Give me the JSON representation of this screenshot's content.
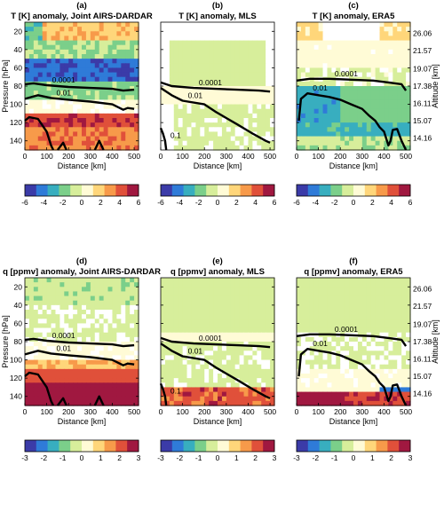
{
  "chart_data": {
    "type": "heatmap",
    "panels": [
      {
        "id": "a",
        "sub": "(a)",
        "title": "T [K] anomaly, Joint AIRS-DARDAR",
        "var": "T",
        "src": "airs",
        "ylabel_left": "Pressure [hPa]",
        "ylabel_right": "",
        "contours": [
          {
            "label": "0.0001",
            "pts": [
              [
                0,
                78
              ],
              [
                40,
                77
              ],
              [
                100,
                79
              ],
              [
                200,
                81
              ],
              [
                300,
                82
              ],
              [
                400,
                83
              ],
              [
                450,
                85
              ],
              [
                500,
                84
              ]
            ]
          },
          {
            "label": "0.01",
            "pts": [
              [
                0,
                94
              ],
              [
                60,
                90
              ],
              [
                120,
                93
              ],
              [
                200,
                95
              ],
              [
                300,
                97
              ],
              [
                400,
                100
              ],
              [
                450,
                106
              ],
              [
                470,
                104
              ],
              [
                500,
                105
              ]
            ]
          },
          {
            "label": "",
            "pts": [
              [
                0,
                118
              ],
              [
                20,
                114
              ],
              [
                60,
                116
              ],
              [
                100,
                130
              ],
              [
                120,
                145
              ],
              [
                130,
                150
              ]
            ]
          },
          {
            "label": "",
            "pts": [
              [
                150,
                150
              ],
              [
                175,
                142
              ],
              [
                190,
                150
              ]
            ]
          },
          {
            "label": "",
            "pts": [
              [
                320,
                150
              ],
              [
                340,
                140
              ],
              [
                360,
                150
              ]
            ]
          }
        ]
      },
      {
        "id": "b",
        "sub": "(b)",
        "title": "T [K] anomaly, MLS",
        "var": "T",
        "src": "mls",
        "ylabel_left": "",
        "ylabel_right": "",
        "contours": [
          {
            "label": "0.0001",
            "pts": [
              [
                0,
                76
              ],
              [
                50,
                80
              ],
              [
                150,
                82
              ],
              [
                250,
                83
              ],
              [
                350,
                84
              ],
              [
                450,
                85
              ],
              [
                500,
                86
              ]
            ]
          },
          {
            "label": "0.01",
            "pts": [
              [
                0,
                82
              ],
              [
                50,
                90
              ],
              [
                100,
                96
              ],
              [
                200,
                100
              ],
              [
                250,
                108
              ],
              [
                300,
                115
              ],
              [
                350,
                122
              ],
              [
                420,
                132
              ],
              [
                450,
                136
              ],
              [
                480,
                140
              ],
              [
                500,
                142
              ]
            ]
          },
          {
            "label": "0.1",
            "pts": [
              [
                0,
                126
              ],
              [
                10,
                132
              ],
              [
                20,
                140
              ],
              [
                25,
                150
              ]
            ]
          }
        ]
      },
      {
        "id": "c",
        "sub": "(c)",
        "title": "T [K] anomaly, ERA5",
        "var": "T",
        "src": "era",
        "ylabel_left": "",
        "ylabel_right": "Altitude [km]",
        "contours": [
          {
            "label": "0.0001",
            "pts": [
              [
                0,
                74
              ],
              [
                60,
                72
              ],
              [
                150,
                72
              ],
              [
                250,
                73
              ],
              [
                350,
                74
              ],
              [
                420,
                76
              ],
              [
                480,
                78
              ],
              [
                500,
                85
              ]
            ]
          },
          {
            "label": "0.01",
            "pts": [
              [
                10,
                118
              ],
              [
                20,
                94
              ],
              [
                50,
                88
              ],
              [
                100,
                90
              ],
              [
                150,
                92
              ],
              [
                200,
                95
              ],
              [
                250,
                100
              ],
              [
                300,
                105
              ],
              [
                330,
                112
              ],
              [
                360,
                118
              ],
              [
                380,
                125
              ],
              [
                400,
                130
              ],
              [
                420,
                145
              ],
              [
                430,
                140
              ],
              [
                440,
                128
              ],
              [
                460,
                127
              ],
              [
                480,
                140
              ],
              [
                500,
                150
              ]
            ]
          }
        ]
      },
      {
        "id": "d",
        "sub": "(d)",
        "title": "q [ppmv] anomaly, Joint AIRS-DARDAR",
        "var": "q",
        "src": "airs",
        "ylabel_left": "Pressure [hPa]",
        "ylabel_right": "",
        "contours": [
          {
            "label": "0.0001",
            "pts": [
              [
                0,
                78
              ],
              [
                40,
                77
              ],
              [
                100,
                79
              ],
              [
                200,
                81
              ],
              [
                300,
                82
              ],
              [
                400,
                83
              ],
              [
                450,
                85
              ],
              [
                500,
                84
              ]
            ]
          },
          {
            "label": "0.01",
            "pts": [
              [
                0,
                94
              ],
              [
                60,
                90
              ],
              [
                120,
                93
              ],
              [
                200,
                95
              ],
              [
                300,
                97
              ],
              [
                400,
                100
              ],
              [
                450,
                106
              ],
              [
                470,
                104
              ],
              [
                500,
                105
              ]
            ]
          },
          {
            "label": "",
            "pts": [
              [
                0,
                118
              ],
              [
                20,
                114
              ],
              [
                60,
                116
              ],
              [
                100,
                130
              ],
              [
                120,
                145
              ],
              [
                130,
                150
              ]
            ]
          },
          {
            "label": "",
            "pts": [
              [
                150,
                150
              ],
              [
                175,
                142
              ],
              [
                190,
                150
              ]
            ]
          },
          {
            "label": "",
            "pts": [
              [
                320,
                150
              ],
              [
                340,
                140
              ],
              [
                360,
                150
              ]
            ]
          }
        ]
      },
      {
        "id": "e",
        "sub": "(e)",
        "title": "q [ppmv] anomaly, MLS",
        "var": "q",
        "src": "mls",
        "ylabel_left": "",
        "ylabel_right": "",
        "contours": [
          {
            "label": "0.0001",
            "pts": [
              [
                0,
                76
              ],
              [
                50,
                80
              ],
              [
                150,
                82
              ],
              [
                250,
                83
              ],
              [
                350,
                84
              ],
              [
                450,
                85
              ],
              [
                500,
                86
              ]
            ]
          },
          {
            "label": "0.01",
            "pts": [
              [
                0,
                82
              ],
              [
                50,
                90
              ],
              [
                100,
                96
              ],
              [
                200,
                100
              ],
              [
                250,
                108
              ],
              [
                300,
                115
              ],
              [
                350,
                122
              ],
              [
                420,
                132
              ],
              [
                450,
                136
              ],
              [
                480,
                140
              ],
              [
                500,
                142
              ]
            ]
          },
          {
            "label": "0.1",
            "pts": [
              [
                0,
                126
              ],
              [
                10,
                132
              ],
              [
                20,
                140
              ],
              [
                25,
                150
              ]
            ]
          }
        ]
      },
      {
        "id": "f",
        "sub": "(f)",
        "title": "q [ppmv] anomaly, ERA5",
        "var": "q",
        "src": "era",
        "ylabel_left": "",
        "ylabel_right": "Altitude [km]",
        "contours": [
          {
            "label": "0.0001",
            "pts": [
              [
                0,
                74
              ],
              [
                60,
                72
              ],
              [
                150,
                72
              ],
              [
                250,
                73
              ],
              [
                350,
                74
              ],
              [
                420,
                76
              ],
              [
                480,
                78
              ],
              [
                500,
                85
              ]
            ]
          },
          {
            "label": "0.01",
            "pts": [
              [
                10,
                118
              ],
              [
                20,
                94
              ],
              [
                50,
                88
              ],
              [
                100,
                90
              ],
              [
                150,
                92
              ],
              [
                200,
                95
              ],
              [
                250,
                100
              ],
              [
                300,
                105
              ],
              [
                330,
                112
              ],
              [
                360,
                118
              ],
              [
                380,
                125
              ],
              [
                400,
                130
              ],
              [
                420,
                145
              ],
              [
                430,
                140
              ],
              [
                440,
                128
              ],
              [
                460,
                127
              ],
              [
                480,
                140
              ],
              [
                500,
                150
              ]
            ]
          }
        ]
      }
    ],
    "x_ticks": [
      0,
      100,
      200,
      300,
      400,
      500
    ],
    "x_label": "Distance [km]",
    "xlim": [
      0,
      520
    ],
    "y_ticks": [
      20,
      40,
      60,
      80,
      100,
      120,
      140
    ],
    "ylim": [
      10,
      150
    ],
    "alt_ticks": [
      {
        "p": 22,
        "label": "26.06"
      },
      {
        "p": 41,
        "label": "21.57"
      },
      {
        "p": 61,
        "label": "19.07"
      },
      {
        "p": 80,
        "label": "17.38"
      },
      {
        "p": 99,
        "label": "16.11"
      },
      {
        "p": 118,
        "label": "15.07"
      },
      {
        "p": 137,
        "label": "14.16"
      }
    ],
    "colorbar_T": {
      "ticks": [
        "-6",
        "-4",
        "-2",
        "0",
        "2",
        "4",
        "6"
      ],
      "range": [
        -6,
        6
      ]
    },
    "colorbar_q": {
      "ticks": [
        "-3",
        "-2",
        "-1",
        "0",
        "1",
        "2",
        "3"
      ],
      "range": [
        -3,
        3
      ]
    },
    "colormap": [
      "#3b3ba8",
      "#2f7bd8",
      "#38aebf",
      "#7bcf8a",
      "#d7ee9b",
      "#fffbd6",
      "#ffd67a",
      "#f79a4a",
      "#e0503a",
      "#a01840"
    ]
  }
}
